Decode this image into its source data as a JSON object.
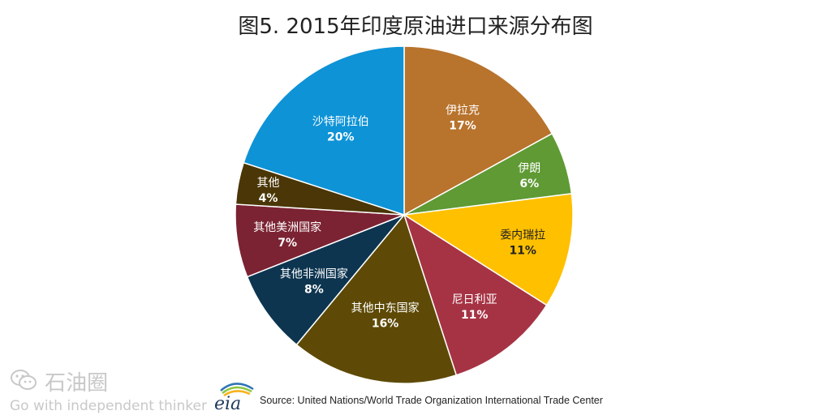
{
  "title": "图5. 2015年印度原油进口来源分布图",
  "chart_data": {
    "type": "pie",
    "title": "图5. 2015年印度原油进口来源分布图",
    "slices": [
      {
        "label": "伊拉克",
        "value": 17,
        "pct": "17%",
        "color": "#b8732c",
        "text_color": "#ffffff"
      },
      {
        "label": "伊朗",
        "value": 6,
        "pct": "6%",
        "color": "#5f9a34",
        "text_color": "#ffffff"
      },
      {
        "label": "委内瑞拉",
        "value": 11,
        "pct": "11%",
        "color": "#ffc000",
        "text_color": "#222222"
      },
      {
        "label": "尼日利亚",
        "value": 11,
        "pct": "11%",
        "color": "#a63344",
        "text_color": "#ffffff"
      },
      {
        "label": "其他中东国家",
        "value": 16,
        "pct": "16%",
        "color": "#5e4a06",
        "text_color": "#ffffff"
      },
      {
        "label": "其他非洲国家",
        "value": 8,
        "pct": "8%",
        "color": "#0d3550",
        "text_color": "#ffffff"
      },
      {
        "label": "其他美洲国家",
        "value": 7,
        "pct": "7%",
        "color": "#7b2333",
        "text_color": "#ffffff"
      },
      {
        "label": "其他",
        "value": 4,
        "pct": "4%",
        "color": "#4a3606",
        "text_color": "#ffffff"
      },
      {
        "label": "沙特阿拉伯",
        "value": 20,
        "pct": "20%",
        "color": "#0e93d6",
        "text_color": "#ffffff"
      }
    ]
  },
  "watermark": {
    "name": "石油圈",
    "slogan": "Go with independent thinker",
    "icon": "wechat-icon"
  },
  "logo": {
    "text": "eia",
    "colors": [
      "#2e74b5",
      "#8cc63e",
      "#f7b31e"
    ]
  },
  "source": "Source: United Nations/World Trade Organization International Trade Center"
}
